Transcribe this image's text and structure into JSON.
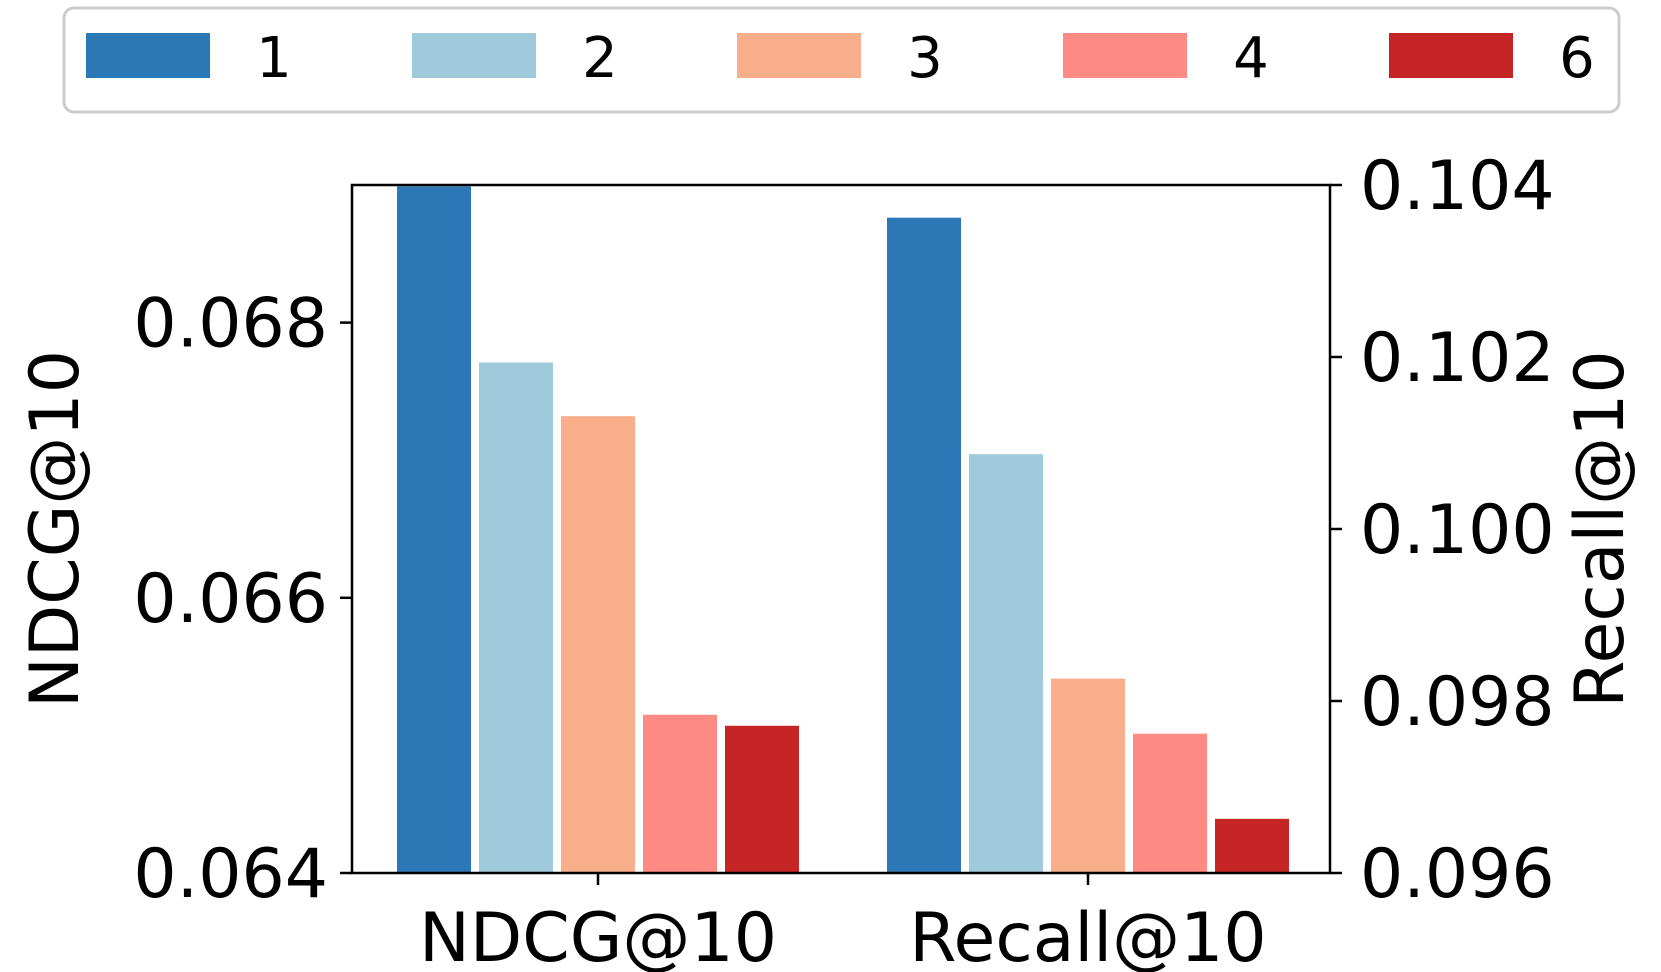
{
  "chart_data": {
    "type": "bar",
    "categories": [
      "NDCG@10",
      "Recall@10"
    ],
    "series": [
      {
        "name": "1",
        "color": "#2c78b6",
        "values": [
          0.06899,
          0.10362
        ]
      },
      {
        "name": "2",
        "color": "#9ecadb",
        "values": [
          0.06771,
          0.10087
        ]
      },
      {
        "name": "3",
        "color": "#f8ad8b",
        "values": [
          0.06732,
          0.09826
        ]
      },
      {
        "name": "4",
        "color": "#ff8983",
        "values": [
          0.06515,
          0.09762
        ]
      },
      {
        "name": "6",
        "color": "#c52524",
        "values": [
          0.06507,
          0.09663
        ]
      }
    ],
    "left_axis": {
      "label": "NDCG@10",
      "ylim": [
        0.064,
        0.069
      ],
      "ticks": [
        "0.064",
        "0.066",
        "0.068"
      ],
      "tick_values": [
        0.064,
        0.066,
        0.068
      ],
      "applies_to": "NDCG@10"
    },
    "right_axis": {
      "label": "Recall@10",
      "ylim": [
        0.096,
        0.104
      ],
      "ticks": [
        "0.096",
        "0.098",
        "0.100",
        "0.102",
        "0.104"
      ],
      "tick_values": [
        0.096,
        0.098,
        0.1,
        0.102,
        0.104
      ],
      "applies_to": "Recall@10"
    },
    "legend_position": "top",
    "grid": false
  }
}
